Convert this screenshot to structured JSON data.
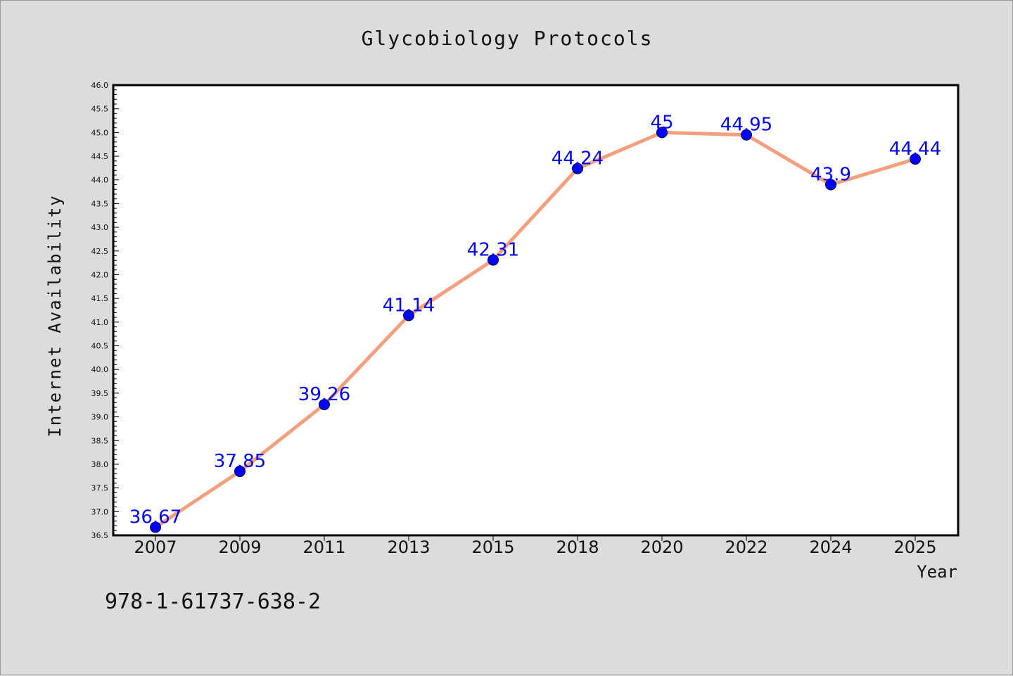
{
  "chart_data": {
    "type": "line",
    "title": "Glycobiology Protocols",
    "xlabel": "Year",
    "ylabel": "Internet Availability",
    "categories": [
      "2007",
      "2009",
      "2011",
      "2013",
      "2015",
      "2018",
      "2020",
      "2022",
      "2024",
      "2025"
    ],
    "series": [
      {
        "values": [
          36.67,
          37.85,
          39.26,
          41.14,
          42.31,
          44.24,
          45,
          44.95,
          43.9,
          44.44
        ],
        "labels": [
          "36.67",
          "37.85",
          "39.26",
          "41.14",
          "42.31",
          "44.24",
          "45",
          "44.95",
          "43.9",
          "44.44"
        ]
      }
    ],
    "ylim": [
      36.5,
      46.0
    ],
    "yticks": [
      "36.5",
      "37.0",
      "37.5",
      "38.0",
      "38.5",
      "39.0",
      "39.5",
      "40.0",
      "40.5",
      "41.0",
      "41.5",
      "42.0",
      "42.5",
      "43.0",
      "43.5",
      "44.0",
      "44.5",
      "45.0",
      "45.5",
      "46.0"
    ],
    "grid": false,
    "colors": {
      "line": "#f4a07e",
      "marker": "#0000ff",
      "label": "#0000ff",
      "background": "#dcdcdc",
      "plot": "#ffffff"
    }
  },
  "footer": {
    "text": "978-1-61737-638-2"
  }
}
